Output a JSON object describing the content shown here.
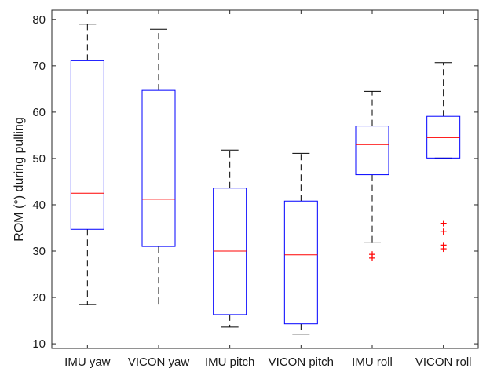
{
  "chart_data": {
    "type": "boxplot",
    "title": "",
    "xlabel": "",
    "ylabel": "ROM (°) during pulling",
    "ylim": [
      9,
      82
    ],
    "yticks": [
      10,
      20,
      30,
      40,
      50,
      60,
      70,
      80
    ],
    "categories": [
      "IMU yaw",
      "VICON yaw",
      "IMU pitch",
      "VICON pitch",
      "IMU roll",
      "VICON roll"
    ],
    "boxes": [
      {
        "category": "IMU yaw",
        "whisker_low": 18.5,
        "q1": 34.7,
        "median": 42.5,
        "q3": 71.1,
        "whisker_high": 79.0,
        "outliers": []
      },
      {
        "category": "VICON yaw",
        "whisker_low": 18.4,
        "q1": 31.0,
        "median": 41.2,
        "q3": 64.7,
        "whisker_high": 77.9,
        "outliers": []
      },
      {
        "category": "IMU pitch",
        "whisker_low": 13.6,
        "q1": 16.3,
        "median": 30.0,
        "q3": 43.6,
        "whisker_high": 51.8,
        "outliers": []
      },
      {
        "category": "VICON pitch",
        "whisker_low": 12.1,
        "q1": 14.3,
        "median": 29.2,
        "q3": 40.8,
        "whisker_high": 51.1,
        "outliers": []
      },
      {
        "category": "IMU roll",
        "whisker_low": 31.8,
        "q1": 46.5,
        "median": 53.0,
        "q3": 57.0,
        "whisker_high": 64.5,
        "outliers": [
          29.3,
          28.5
        ]
      },
      {
        "category": "VICON roll",
        "whisker_low": 50.1,
        "q1": 50.1,
        "median": 54.5,
        "q3": 59.1,
        "whisker_high": 70.7,
        "outliers": [
          36.0,
          34.2,
          31.3,
          30.5
        ]
      }
    ],
    "grid": false,
    "colors": {
      "box": "#0000ff",
      "median": "#ff0000",
      "whisker": "#000000",
      "outlier": "#ff0000",
      "axis": "#262626"
    }
  }
}
